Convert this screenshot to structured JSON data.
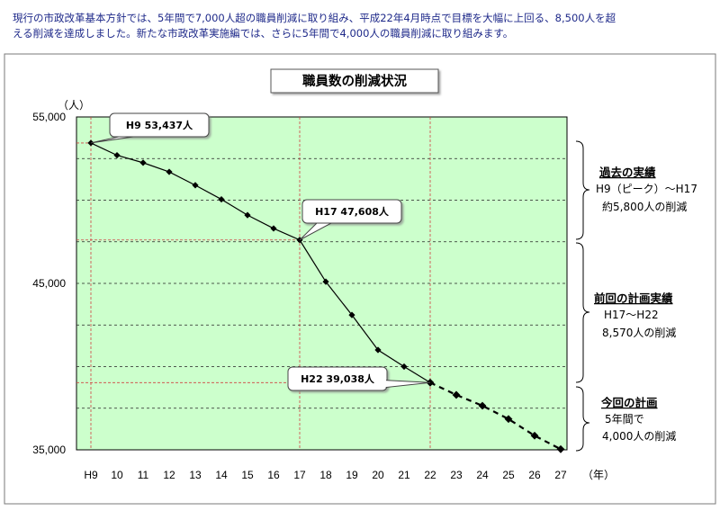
{
  "intro": {
    "line1": "現行の市政改革基本方針では、5年間で7,000人超の職員削減に取り組み、平成22年4月時点で目標を大幅に上回る、8,500人を超",
    "line2": "える削減を達成しました。新たな市政改革実施編では、さらに5年間で4,000人の職員削減に取り組みます。"
  },
  "chart_data": {
    "type": "line",
    "title": "職員数の削減状況",
    "ylabel": "（人）",
    "xlabel": "（年）",
    "categories": [
      "H9",
      "10",
      "11",
      "12",
      "13",
      "14",
      "15",
      "16",
      "17",
      "18",
      "19",
      "20",
      "21",
      "22",
      "23",
      "24",
      "25",
      "26",
      "27"
    ],
    "series": [
      {
        "values": [
          53437,
          52700,
          52250,
          51700,
          50900,
          50050,
          49100,
          48300,
          47608,
          45100,
          43100,
          41000,
          40000,
          39038,
          null,
          null,
          null,
          null,
          null
        ]
      },
      {
        "values": [
          null,
          null,
          null,
          null,
          null,
          null,
          null,
          null,
          null,
          null,
          null,
          null,
          null,
          39038,
          38300,
          37650,
          36850,
          35850,
          35038
        ]
      }
    ],
    "ylim": [
      35000,
      55000
    ],
    "yticks": [
      35000,
      45000,
      55000
    ],
    "ytick_labels": [
      "35,000",
      "45,000",
      "55,000"
    ],
    "callouts": [
      {
        "x": "H9",
        "y": 53437,
        "label": "H9 53,437人"
      },
      {
        "x": "17",
        "y": 47608,
        "label": "H17 47,608人"
      },
      {
        "x": "22",
        "y": 39038,
        "label": "H22 39,038人"
      }
    ],
    "plot_background": "#ccffcc",
    "line_color": "#000000",
    "grid": "dashed"
  },
  "side_notes": [
    {
      "heading": "過去の実績",
      "lines": [
        "H9（ピーク）～H17",
        "約5,800人の削減"
      ]
    },
    {
      "heading": "前回の計画実績",
      "lines": [
        "H17～H22",
        "8,570人の削減"
      ]
    },
    {
      "heading": "今回の計画",
      "lines": [
        "5年間で",
        "4,000人の削減"
      ]
    }
  ]
}
